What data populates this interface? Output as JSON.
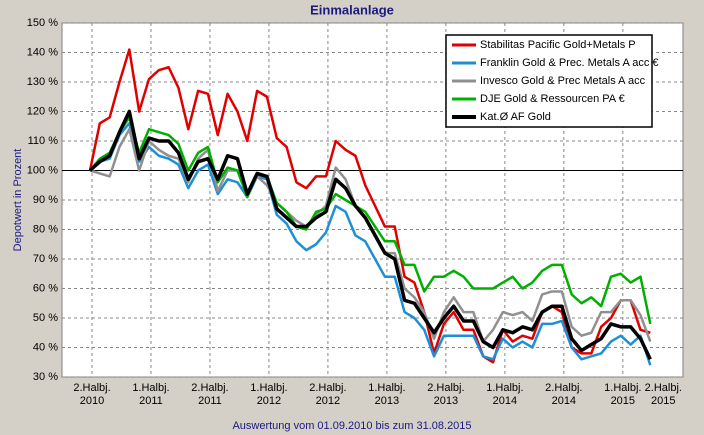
{
  "chart_data": {
    "type": "line",
    "title": "Einmalanlage",
    "y_label": "Depotwert in Prozent",
    "x_label": "Auswertung vom 01.09.2010 bis zum 31.08.2015",
    "categories": [
      "2.Halbj. 2010",
      null,
      null,
      null,
      null,
      null,
      "1.Halbj. 2011",
      null,
      null,
      null,
      null,
      null,
      "2.Halbj. 2011",
      null,
      null,
      null,
      null,
      null,
      "1.Halbj. 2012",
      null,
      null,
      null,
      null,
      null,
      "2.Halbj. 2012",
      null,
      null,
      null,
      null,
      null,
      "1.Halbj. 2013",
      null,
      null,
      null,
      null,
      null,
      "2.Halbj. 2013",
      null,
      null,
      null,
      null,
      null,
      "1.Halbj. 2014",
      null,
      null,
      null,
      null,
      null,
      "2.Halbj. 2014",
      null,
      null,
      null,
      null,
      null,
      "1.Halbj. 2015",
      null,
      null,
      "2.Halbj. 2015"
    ],
    "ylim": [
      30,
      150
    ],
    "yticks": [
      {
        "value": 30,
        "label": "30 %"
      },
      {
        "value": 40,
        "label": "40 %"
      },
      {
        "value": 50,
        "label": "50 %"
      },
      {
        "value": 60,
        "label": "60 %"
      },
      {
        "value": 70,
        "label": "70 %"
      },
      {
        "value": 80,
        "label": "80 %"
      },
      {
        "value": 90,
        "label": "90 %"
      },
      {
        "value": 100,
        "label": "100 %"
      },
      {
        "value": 110,
        "label": "110 %"
      },
      {
        "value": 120,
        "label": "120 %"
      },
      {
        "value": 130,
        "label": "130 %"
      },
      {
        "value": 140,
        "label": "140 %"
      },
      {
        "value": 150,
        "label": "150 %"
      }
    ],
    "reference_line": 100,
    "grid": true,
    "legend": "top-right",
    "series": [
      {
        "name": "Stabilitas Pacific Gold+Metals P",
        "color": "#e00000",
        "values": [
          100,
          116,
          118,
          130,
          141,
          120,
          131,
          134,
          135,
          128,
          114,
          127,
          126,
          112,
          126,
          120,
          110,
          127,
          125,
          111,
          108,
          96,
          94,
          98,
          98,
          110,
          107,
          105,
          95,
          88,
          81,
          81,
          64,
          62,
          52,
          38,
          48,
          52,
          46,
          46,
          37,
          35,
          46,
          42,
          44,
          43,
          52,
          54,
          52,
          40,
          38,
          38,
          47,
          50,
          56,
          56,
          46,
          45
        ]
      },
      {
        "name": "Franklin Gold & Prec. Metals A acc €",
        "color": "#1e8fd6",
        "values": [
          100,
          103,
          104,
          112,
          116,
          103,
          108,
          105,
          104,
          102,
          94,
          100,
          102,
          92,
          97,
          96,
          91,
          98,
          97,
          85,
          82,
          76,
          73,
          75,
          79,
          88,
          86,
          78,
          76,
          70,
          64,
          64,
          52,
          50,
          46,
          37,
          44,
          44,
          44,
          44,
          37,
          36,
          43,
          40,
          42,
          40,
          48,
          48,
          49,
          40,
          36,
          37,
          38,
          42,
          44,
          41,
          44,
          34
        ]
      },
      {
        "name": "Invesco Gold & Prec Metals A acc",
        "color": "#909090",
        "values": [
          100,
          99,
          98,
          108,
          114,
          100,
          110,
          107,
          105,
          104,
          96,
          104,
          107,
          93,
          100,
          100,
          92,
          98,
          95,
          89,
          86,
          83,
          81,
          85,
          88,
          101,
          97,
          88,
          84,
          78,
          72,
          72,
          60,
          57,
          52,
          43,
          52,
          57,
          52,
          52,
          42,
          46,
          52,
          51,
          52,
          49,
          58,
          59,
          59,
          47,
          44,
          45,
          52,
          52,
          56,
          56,
          51,
          42
        ]
      },
      {
        "name": "DJE Gold & Ressourcen PA €",
        "color": "#00b000",
        "values": [
          100,
          104,
          106,
          113,
          118,
          106,
          114,
          113,
          112,
          109,
          100,
          106,
          108,
          96,
          101,
          100,
          91,
          99,
          98,
          89,
          86,
          81,
          80,
          86,
          87,
          92,
          90,
          88,
          86,
          81,
          76,
          76,
          68,
          68,
          59,
          64,
          64,
          66,
          64,
          60,
          60,
          60,
          62,
          64,
          60,
          62,
          66,
          68,
          68,
          58,
          55,
          57,
          54,
          64,
          65,
          62,
          64,
          48
        ]
      },
      {
        "name": "Kat.Ø AF Gold",
        "color": "#000000",
        "values": [
          100,
          103,
          105,
          113,
          120,
          104,
          111,
          110,
          110,
          106,
          97,
          103,
          104,
          97,
          105,
          104,
          92,
          99,
          98,
          87,
          84,
          81,
          81,
          84,
          86,
          97,
          94,
          88,
          84,
          78,
          72,
          70,
          56,
          55,
          50,
          45,
          50,
          54,
          49,
          49,
          42,
          40,
          46,
          45,
          47,
          46,
          52,
          54,
          54,
          43,
          39,
          41,
          43,
          48,
          47,
          47,
          43,
          36
        ]
      }
    ]
  }
}
